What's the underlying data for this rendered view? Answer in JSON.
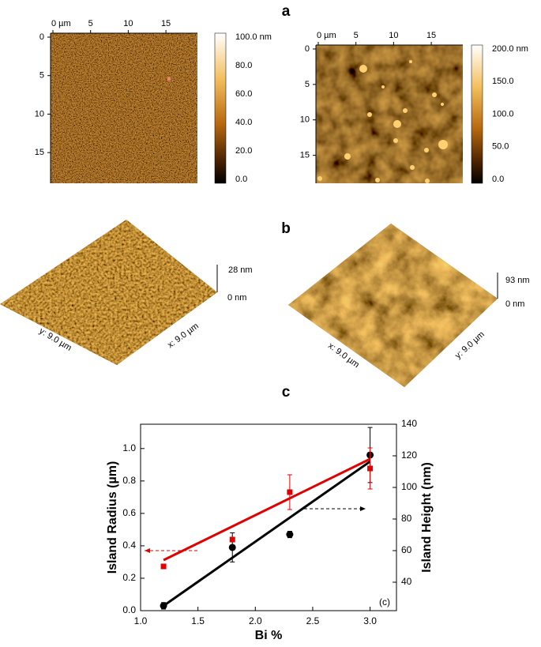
{
  "panel_labels": [
    "a",
    "b",
    "c"
  ],
  "afm_2d": [
    {
      "x_ticks": [
        "0 µm",
        "5",
        "10",
        "15"
      ],
      "y_ticks": [
        "0",
        "5",
        "10",
        "15"
      ],
      "colorbar_ticks": [
        "100.0 nm",
        "80.0",
        "60.0",
        "40.0",
        "20.0",
        "0.0"
      ]
    },
    {
      "x_ticks": [
        "0 µm",
        "5",
        "10",
        "15"
      ],
      "y_ticks": [
        "0",
        "5",
        "10",
        "15"
      ],
      "colorbar_ticks": [
        "200.0 nm",
        "150.0",
        "100.0",
        "50.0",
        "0.0"
      ]
    }
  ],
  "afm_3d": [
    {
      "height_labels": [
        "28 nm",
        "0 nm"
      ],
      "x_label": "x: 9.0 µm",
      "y_label": "y: 9.0 µm"
    },
    {
      "height_labels": [
        "93 nm",
        "0 nm"
      ],
      "x_label": "x: 9.0 µm",
      "y_label": "y: 9.0 µm"
    }
  ],
  "chart_data": {
    "type": "scatter",
    "x_label": "Bi %",
    "y_label": "Island Radius (µm)",
    "y2_label": "Island Height (nm)",
    "annotation": "(c)",
    "x": [
      1.2,
      1.8,
      2.3,
      3.0
    ],
    "series": [
      {
        "color": "#000000",
        "marker": "circle",
        "values": [
          0.03,
          0.39,
          0.47,
          0.96
        ],
        "errors": [
          0.02,
          0.09,
          0.02,
          0.17
        ]
      },
      {
        "color": "#e00000",
        "marker": "square",
        "axis": "y2",
        "values": [
          50,
          67,
          97,
          112
        ],
        "errors": [
          null,
          null,
          11,
          13
        ]
      }
    ],
    "fits": [
      {
        "color": "#000000",
        "x": [
          1.2,
          3.0
        ],
        "values": [
          0.03,
          0.92
        ]
      },
      {
        "color": "#e00000",
        "axis": "y2",
        "x": [
          1.2,
          3.0
        ],
        "values": [
          54,
          118
        ]
      }
    ],
    "xlim": [
      1.0,
      3.23
    ],
    "xticks": [
      {
        "value": 1.0,
        "label": "1.0"
      },
      {
        "value": 1.5,
        "label": "1.5"
      },
      {
        "value": 2.0,
        "label": "2.0"
      },
      {
        "value": 2.5,
        "label": "2.5"
      },
      {
        "value": 3.0,
        "label": "3.0"
      }
    ],
    "ylim": [
      0,
      1.15
    ],
    "yticks": [
      {
        "value": 0,
        "label": "0.0"
      },
      {
        "value": 0.2,
        "label": "0.2"
      },
      {
        "value": 0.4,
        "label": "0.4"
      },
      {
        "value": 0.6,
        "label": "0.6"
      },
      {
        "value": 0.8,
        "label": "0.8"
      },
      {
        "value": 1.0,
        "label": "1.0"
      }
    ],
    "y2lim": [
      22,
      140
    ],
    "y2ticks": [
      40,
      60,
      80,
      100,
      120,
      140
    ]
  }
}
